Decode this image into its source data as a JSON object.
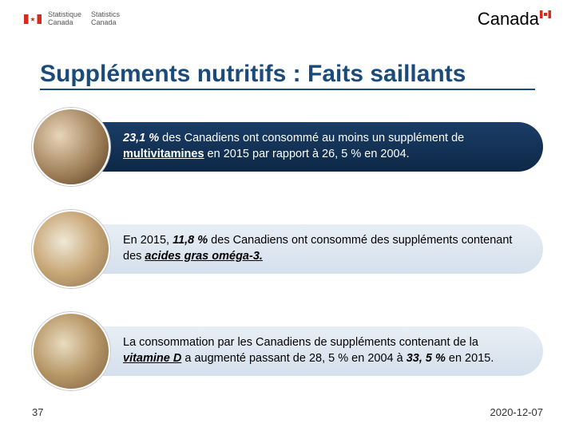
{
  "header": {
    "org_fr_line1": "Statistique",
    "org_fr_line2": "Canada",
    "org_en_line1": "Statistics",
    "org_en_line2": "Canada",
    "wordmark": "Canada"
  },
  "title": "Suppléments nutritifs : Faits saillants",
  "items": [
    {
      "style": "dark",
      "circle": "c1",
      "html": "<span class='it'>23,1 %</span> des Canadiens ont consommé au moins un supplément de <span class='ul'>multivitamines</span> en 2015 par rapport à 26, 5 % en 2004."
    },
    {
      "style": "light",
      "circle": "c2",
      "html": "En 2015, <span class='it'>11,8 %</span> des Canadiens ont consommé des suppléments contenant des <span class='it ul'>acides gras oméga-3.</span>"
    },
    {
      "style": "light",
      "circle": "c3",
      "html": "La consommation par les Canadiens de suppléments contenant de la <span class='it ul'>vitamine D</span> a augmenté passant de 28, 5 % en 2004 à <span class='it'>33, 5 %</span> en 2015."
    }
  ],
  "footer": {
    "page": "37",
    "date": "2020-12-07"
  },
  "colors": {
    "title": "#1a4b7a",
    "pill_dark_top": "#1a3d66",
    "pill_dark_bottom": "#0d2847",
    "pill_light_top": "#e8eef5",
    "pill_light_bottom": "#d4e0ec",
    "flag_red": "#d52b1e"
  }
}
